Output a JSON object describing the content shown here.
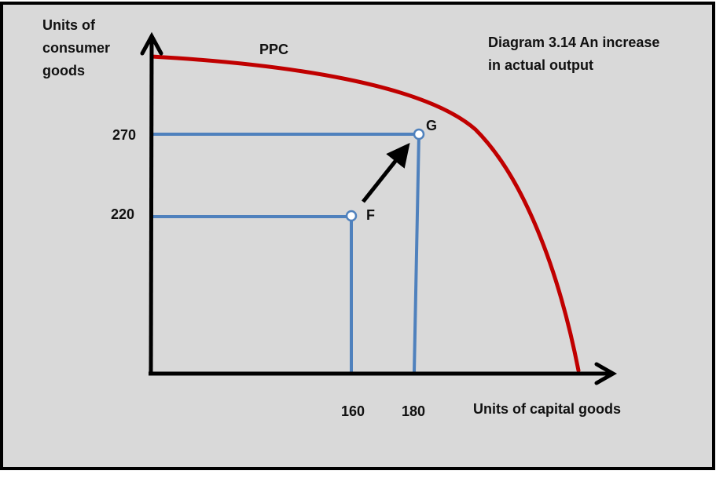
{
  "diagram": {
    "title_line1": "Diagram 3.14  An increase",
    "title_line2": "in actual output",
    "y_axis_label": [
      "Units of",
      "consumer",
      "goods"
    ],
    "x_axis_label": "Units of capital goods",
    "curve_label": "PPC",
    "points": [
      {
        "name": "F",
        "capital_goods": "160",
        "consumer_goods": "220"
      },
      {
        "name": "G",
        "capital_goods": "180",
        "consumer_goods": "270"
      }
    ],
    "x_ticks": [
      "160",
      "180"
    ],
    "y_ticks": [
      "270",
      "220"
    ]
  },
  "colors": {
    "background": "#d9d9d9",
    "border": "#000000",
    "curve": "#c00000",
    "guides": "#4f81bd",
    "axes": "#000000",
    "arrow": "#000000"
  }
}
